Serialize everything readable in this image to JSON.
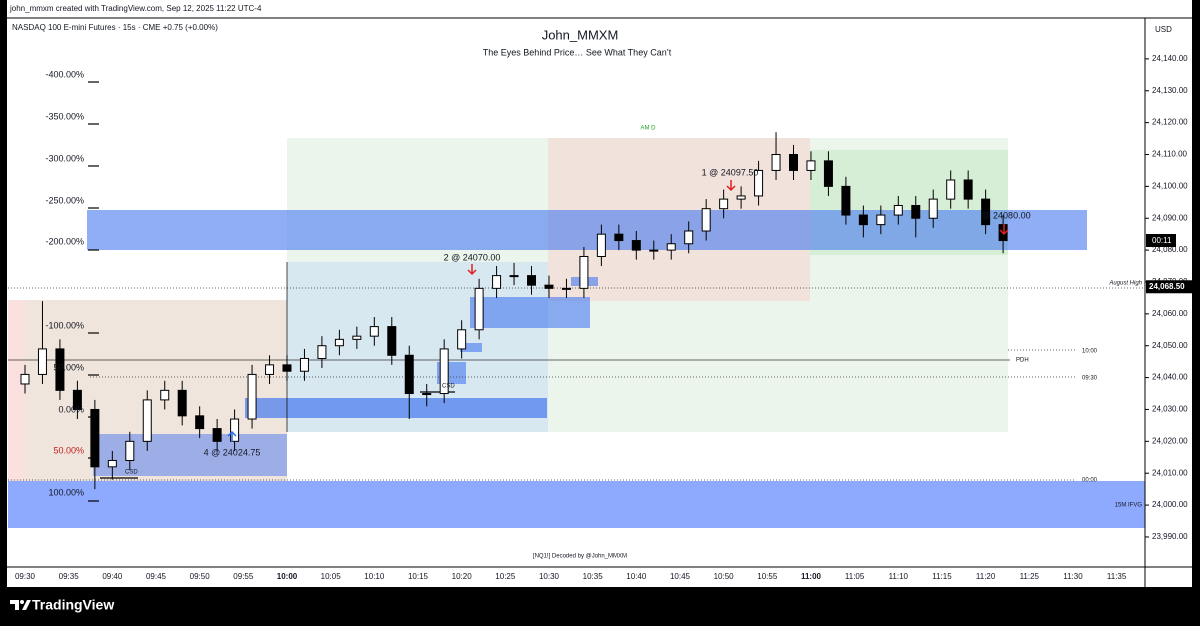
{
  "header": {
    "caption": "john_mmxm created with TradingView.com, Sep 12, 2025 11:22 UTC-4",
    "symbol": "NASDAQ 100 E-mini Futures · 15s · CME  +0.75 (+0.00%)",
    "brand": "TradingView"
  },
  "chart_data": {
    "type": "candlestick",
    "title": "John_MMXM",
    "subtitle": "The Eyes Behind Price… See What They Can’t",
    "currency": "USD",
    "x": [
      "09:30",
      "09:32",
      "09:34",
      "09:36",
      "09:38",
      "09:40",
      "09:42",
      "09:44",
      "09:46",
      "09:48",
      "09:50",
      "09:52",
      "09:54",
      "09:56",
      "09:58",
      "10:00",
      "10:02",
      "10:04",
      "10:06",
      "10:08",
      "10:10",
      "10:12",
      "10:14",
      "10:16",
      "10:18",
      "10:20",
      "10:22",
      "10:24",
      "10:26",
      "10:28",
      "10:30",
      "10:32",
      "10:34",
      "10:36",
      "10:38",
      "10:40",
      "10:42",
      "10:44",
      "10:46",
      "10:48",
      "10:50",
      "10:52",
      "10:54",
      "10:56",
      "10:58",
      "11:00",
      "11:02",
      "11:04",
      "11:06",
      "11:08",
      "11:10",
      "11:12",
      "11:14",
      "11:16",
      "11:18",
      "11:20",
      "11:22"
    ],
    "ohlc": [
      [
        24038,
        24044,
        24035,
        24041
      ],
      [
        24041,
        24064,
        24038,
        24049
      ],
      [
        24049,
        24052,
        24033,
        24036
      ],
      [
        24036,
        24039,
        24027,
        24030
      ],
      [
        24030,
        24033,
        24005,
        24012
      ],
      [
        24012,
        24017,
        24008,
        24014
      ],
      [
        24014,
        24023,
        24011,
        24020
      ],
      [
        24020,
        24036,
        24017,
        24033
      ],
      [
        24033,
        24039,
        24030,
        24036
      ],
      [
        24036,
        24039,
        24025,
        24028
      ],
      [
        24028,
        24031,
        24021,
        24024
      ],
      [
        24024,
        24027,
        24017,
        24020
      ],
      [
        24020,
        24030,
        24017,
        24027
      ],
      [
        24027,
        24044,
        24024,
        24041
      ],
      [
        24041,
        24047,
        24038,
        24044
      ],
      [
        24044,
        24047,
        24039,
        24042
      ],
      [
        24042,
        24049,
        24039,
        24046
      ],
      [
        24046,
        24053,
        24043,
        24050
      ],
      [
        24050,
        24055,
        24047,
        24052
      ],
      [
        24052,
        24056,
        24049,
        24053
      ],
      [
        24053,
        24059,
        24050,
        24056
      ],
      [
        24056,
        24059,
        24044,
        24047
      ],
      [
        24047,
        24050,
        24027,
        24035
      ],
      [
        24035,
        24038,
        24031,
        24035
      ],
      [
        24035,
        24052,
        24032,
        24049
      ],
      [
        24049,
        24058,
        24046,
        24055
      ],
      [
        24055,
        24071,
        24052,
        24068
      ],
      [
        24068,
        24075,
        24065,
        24072
      ],
      [
        24072,
        24076,
        24069,
        24072
      ],
      [
        24072,
        24075,
        24066,
        24069
      ],
      [
        24069,
        24072,
        24065,
        24068
      ],
      [
        24068,
        24071,
        24065,
        24068
      ],
      [
        24068,
        24081,
        24065,
        24078
      ],
      [
        24078,
        24088,
        24075,
        24085
      ],
      [
        24085,
        24088,
        24080,
        24083
      ],
      [
        24083,
        24086,
        24077,
        24080
      ],
      [
        24080,
        24083,
        24077,
        24080
      ],
      [
        24080,
        24085,
        24077,
        24082
      ],
      [
        24082,
        24089,
        24079,
        24086
      ],
      [
        24086,
        24096,
        24083,
        24093
      ],
      [
        24093,
        24099,
        24090,
        24096
      ],
      [
        24096,
        24100,
        24093,
        24097
      ],
      [
        24097,
        24108,
        24094,
        24105
      ],
      [
        24105,
        24117,
        24102,
        24110
      ],
      [
        24110,
        24113,
        24102,
        24105
      ],
      [
        24105,
        24111,
        24102,
        24108
      ],
      [
        24108,
        24111,
        24097,
        24100
      ],
      [
        24100,
        24103,
        24088,
        24091
      ],
      [
        24091,
        24094,
        24084,
        24088
      ],
      [
        24088,
        24094,
        24085,
        24091
      ],
      [
        24091,
        24097,
        24088,
        24094
      ],
      [
        24094,
        24097,
        24084,
        24090
      ],
      [
        24090,
        24099,
        24087,
        24096
      ],
      [
        24096,
        24105,
        24093,
        24102
      ],
      [
        24102,
        24105,
        24093,
        24096
      ],
      [
        24096,
        24099,
        24085,
        24088
      ],
      [
        24088,
        24091,
        24079,
        24083
      ]
    ],
    "up_color": "#ffffff",
    "down_color": "#000000",
    "ylim": [
      23981.2,
      24152.2
    ],
    "yticks": [
      {
        "value": 23990,
        "label": "23,990.00"
      },
      {
        "value": 24000,
        "label": "24,000.00"
      },
      {
        "value": 24010,
        "label": "24,010.00"
      },
      {
        "value": 24020,
        "label": "24,020.00"
      },
      {
        "value": 24030,
        "label": "24,030.00"
      },
      {
        "value": 24040,
        "label": "24,040.00"
      },
      {
        "value": 24050,
        "label": "24,050.00"
      },
      {
        "value": 24060,
        "label": "24,060.00"
      },
      {
        "value": 24070,
        "label": "24,070.00"
      },
      {
        "value": 24080,
        "label": "24,080.00"
      },
      {
        "value": 24090,
        "label": "24,090.00"
      },
      {
        "value": 24100,
        "label": "24,100.00"
      },
      {
        "value": 24110,
        "label": "24,110.00"
      },
      {
        "value": 24120,
        "label": "24,120.00"
      },
      {
        "value": 24130,
        "label": "24,130.00"
      },
      {
        "value": 24140,
        "label": "24,140.00"
      }
    ],
    "xticks": [
      "09:30",
      "09:35",
      "09:40",
      "09:45",
      "09:50",
      "09:55",
      "10:00",
      "10:05",
      "10:10",
      "10:15",
      "10:20",
      "10:25",
      "10:30",
      "10:35",
      "10:40",
      "10:45",
      "10:50",
      "10:55",
      "11:00",
      "11:05",
      "11:10",
      "11:15",
      "11:20",
      "11:25",
      "11:30",
      "11:35"
    ],
    "last_price": {
      "value": 24068.5,
      "label": "24,068.50"
    },
    "countdown": "00:11",
    "fib_labels": [
      "-400.00%",
      "-350.00%",
      "-300.00%",
      "-250.00%",
      "-200.00%",
      "-100.00%",
      "50.00%",
      "0.00%",
      "50.00%",
      "100.00%"
    ],
    "annotations": [
      "AM D",
      "1 @ 24097.50",
      "2 @ 24070.00",
      "4 @ 24024.75",
      "@ 24080.00",
      "CSD",
      "CSD",
      "August High",
      "PDH",
      "10:00",
      "09:30",
      "00:00",
      "15M IFVG",
      "[NQ1!] Decoded by @John_MMXM"
    ]
  }
}
